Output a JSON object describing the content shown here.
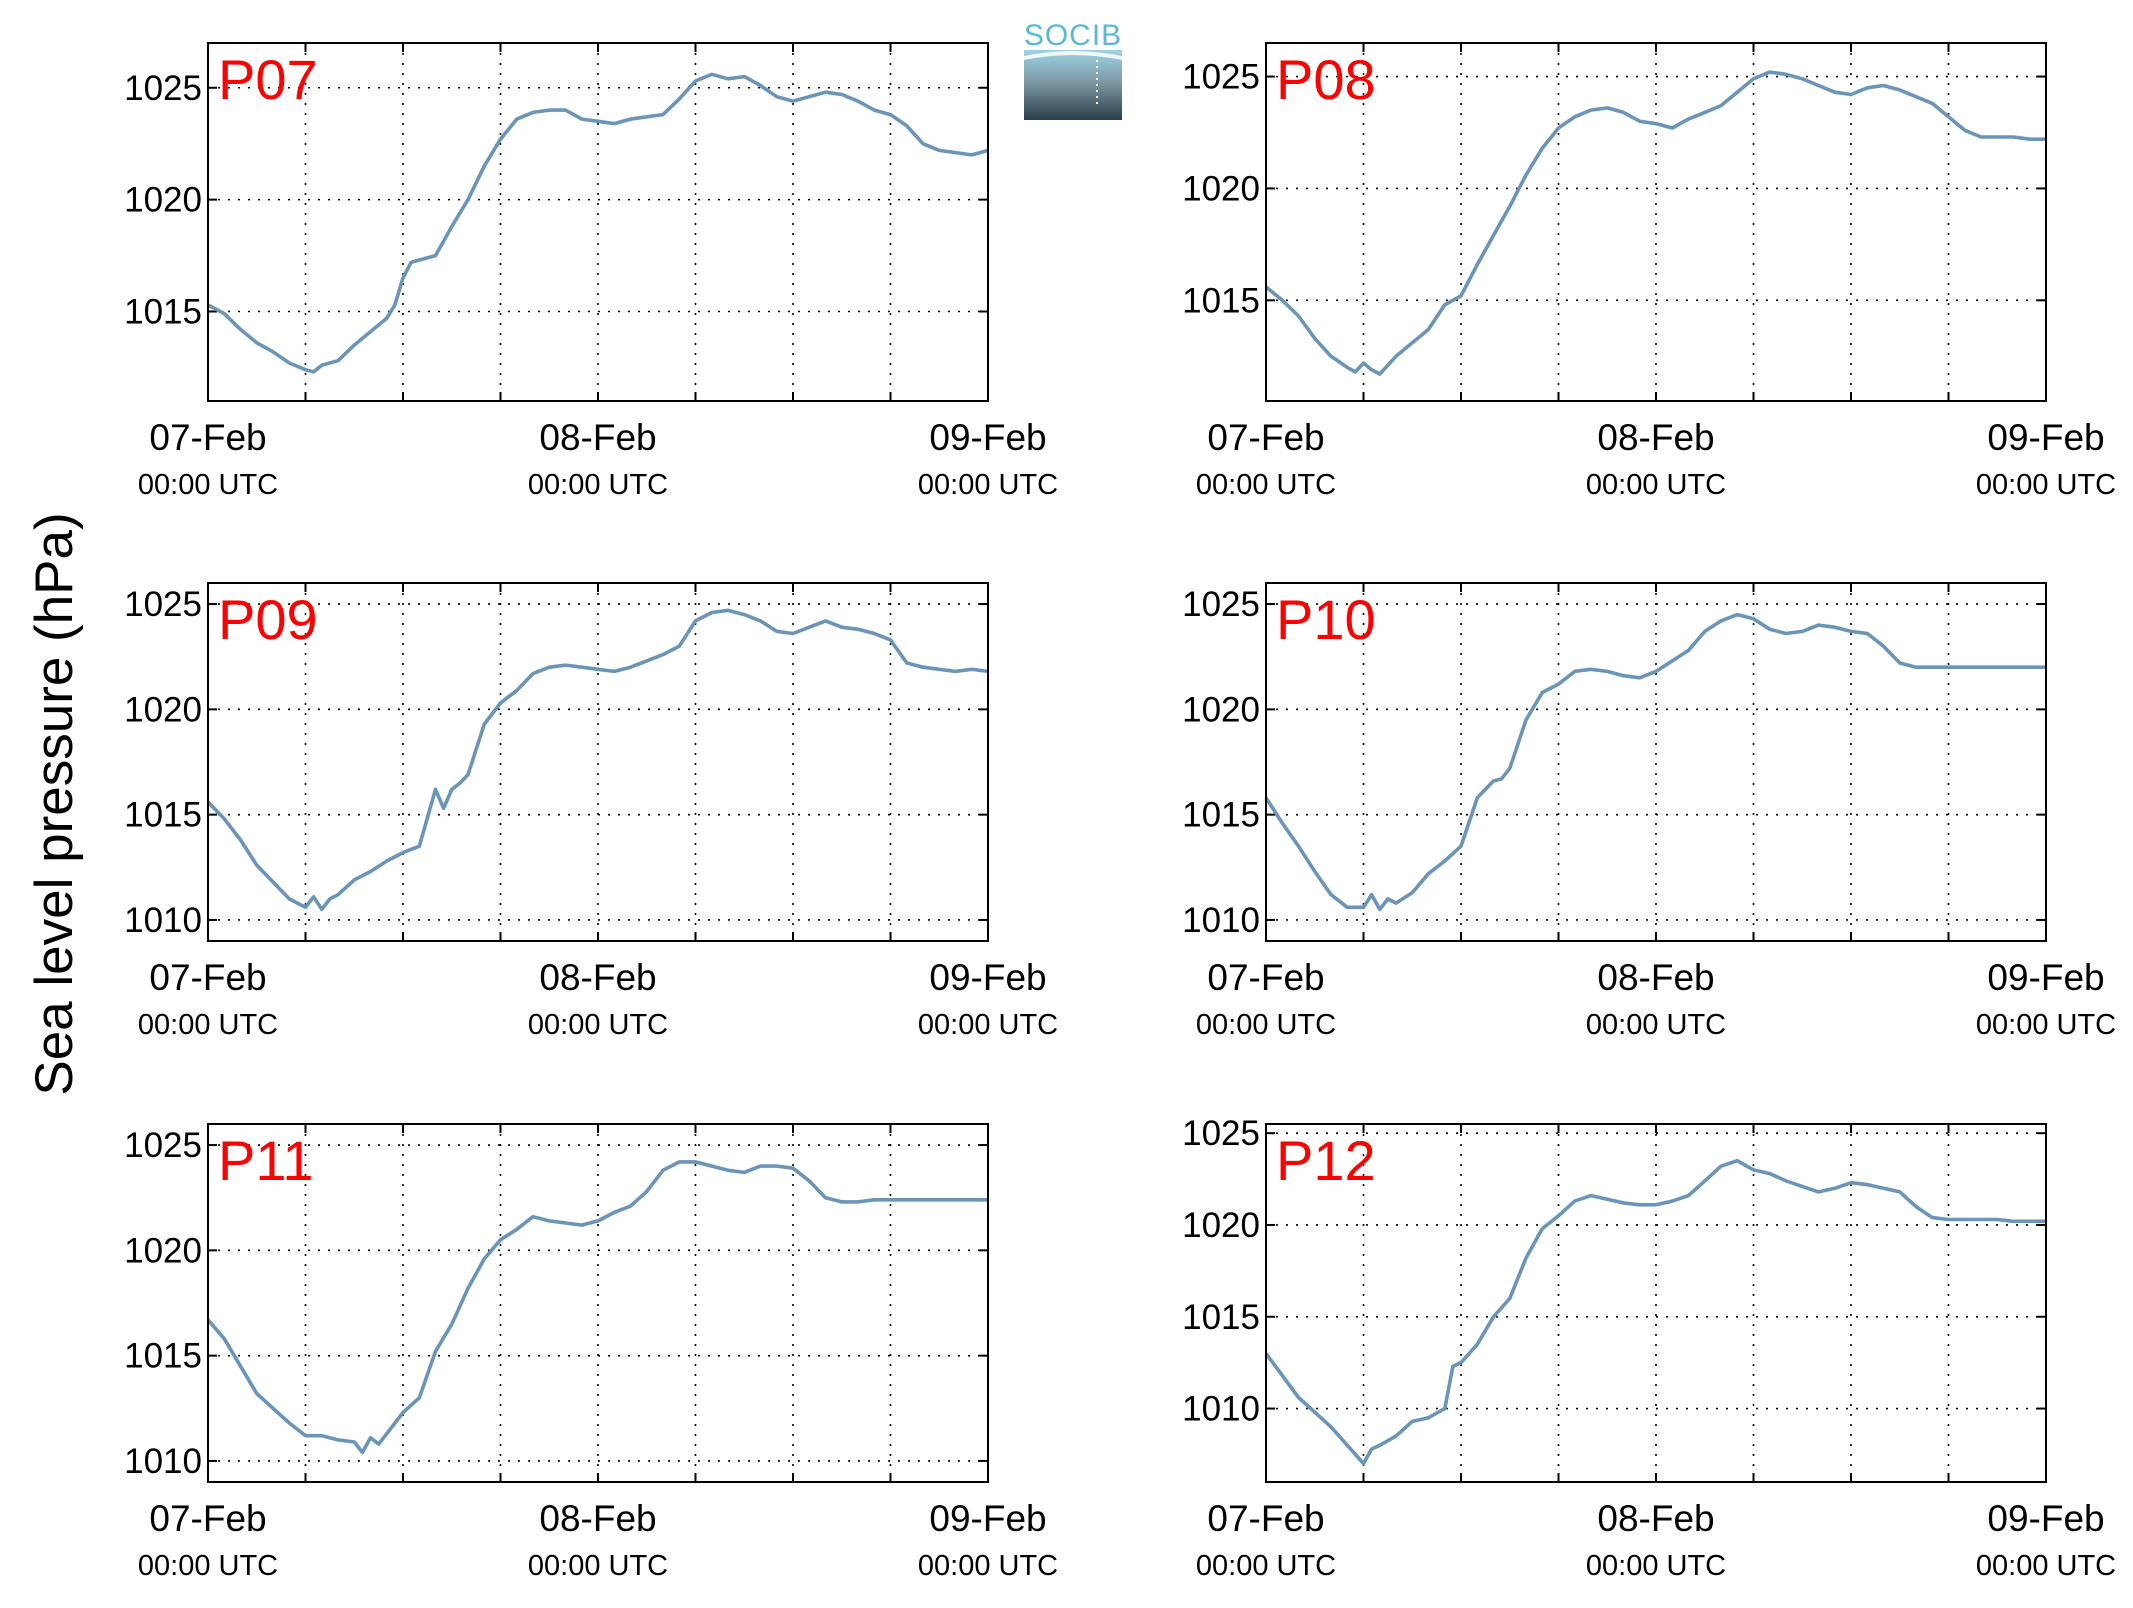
{
  "figure": {
    "ylabel": "Sea level pressure (hPa)",
    "logo_text": "SOCIB",
    "colors": {
      "line": "#6a94b8",
      "panel_label": "#ff0000",
      "logo_top": "#9cd3e3",
      "logo_bottom": "#2a3d4a"
    }
  },
  "chart_data": [
    {
      "type": "line",
      "panel": "P07",
      "ylim": [
        1011,
        1027
      ],
      "yticks": [
        1015,
        1020,
        1025
      ],
      "x_unit": "hours since 07-Feb 00:00 UTC",
      "xlim": [
        0,
        48
      ],
      "xtick_labels": [
        {
          "date": "07-Feb",
          "time": "00:00 UTC"
        },
        {
          "date": "08-Feb",
          "time": "00:00 UTC"
        },
        {
          "date": "09-Feb",
          "time": "00:00 UTC"
        }
      ],
      "grid": true,
      "series": [
        {
          "x": [
            0,
            1,
            2,
            3,
            4,
            5,
            6,
            6.5,
            7,
            8,
            9,
            10,
            11,
            11.5,
            12,
            12.5,
            13,
            14,
            15,
            16,
            17,
            18,
            19,
            20,
            21,
            22,
            23,
            24,
            25,
            26,
            27,
            28,
            29,
            30,
            31,
            32,
            33,
            34,
            35,
            36,
            37,
            38,
            39,
            40,
            41,
            42,
            43,
            44,
            45,
            46,
            47,
            48
          ],
          "y": [
            1015.3,
            1014.9,
            1014.2,
            1013.6,
            1013.2,
            1012.7,
            1012.4,
            1012.3,
            1012.6,
            1012.8,
            1013.5,
            1014.1,
            1014.7,
            1015.3,
            1016.5,
            1017.2,
            1017.3,
            1017.5,
            1018.8,
            1020.0,
            1021.5,
            1022.7,
            1023.6,
            1023.9,
            1024.0,
            1024.0,
            1023.6,
            1023.5,
            1023.4,
            1023.6,
            1023.7,
            1023.8,
            1024.5,
            1025.3,
            1025.6,
            1025.4,
            1025.5,
            1025.1,
            1024.6,
            1024.4,
            1024.6,
            1024.8,
            1024.7,
            1024.4,
            1024.0,
            1023.8,
            1023.3,
            1022.5,
            1022.2,
            1022.1,
            1022.0,
            1022.2
          ]
        }
      ]
    },
    {
      "type": "line",
      "panel": "P08",
      "ylim": [
        1010.5,
        1026.5
      ],
      "yticks": [
        1015,
        1020,
        1025
      ],
      "x_unit": "hours since 07-Feb 00:00 UTC",
      "xlim": [
        0,
        48
      ],
      "xtick_labels": [
        {
          "date": "07-Feb",
          "time": "00:00 UTC"
        },
        {
          "date": "08-Feb",
          "time": "00:00 UTC"
        },
        {
          "date": "09-Feb",
          "time": "00:00 UTC"
        }
      ],
      "grid": true,
      "series": [
        {
          "x": [
            0,
            1,
            2,
            3,
            4,
            5,
            5.5,
            6,
            6.5,
            7,
            8,
            9,
            10,
            11,
            12,
            13,
            14,
            15,
            16,
            17,
            18,
            19,
            20,
            21,
            22,
            23,
            24,
            25,
            26,
            27,
            28,
            29,
            30,
            31,
            32,
            33,
            34,
            35,
            36,
            37,
            38,
            39,
            40,
            41,
            42,
            43,
            44,
            45,
            46,
            47,
            48
          ],
          "y": [
            1015.6,
            1015.0,
            1014.3,
            1013.3,
            1012.5,
            1012.0,
            1011.8,
            1012.2,
            1011.9,
            1011.7,
            1012.5,
            1013.1,
            1013.7,
            1014.8,
            1015.2,
            1016.6,
            1017.9,
            1019.2,
            1020.6,
            1021.8,
            1022.7,
            1023.2,
            1023.5,
            1023.6,
            1023.4,
            1023.0,
            1022.9,
            1022.7,
            1023.1,
            1023.4,
            1023.7,
            1024.3,
            1024.9,
            1025.2,
            1025.1,
            1024.9,
            1024.6,
            1024.3,
            1024.2,
            1024.5,
            1024.6,
            1024.4,
            1024.1,
            1023.8,
            1023.2,
            1022.6,
            1022.3,
            1022.3,
            1022.3,
            1022.2,
            1022.2
          ]
        }
      ]
    },
    {
      "type": "line",
      "panel": "P09",
      "ylim": [
        1009,
        1026
      ],
      "yticks": [
        1010,
        1015,
        1020,
        1025
      ],
      "x_unit": "hours since 07-Feb 00:00 UTC",
      "xlim": [
        0,
        48
      ],
      "xtick_labels": [
        {
          "date": "07-Feb",
          "time": "00:00 UTC"
        },
        {
          "date": "08-Feb",
          "time": "00:00 UTC"
        },
        {
          "date": "09-Feb",
          "time": "00:00 UTC"
        }
      ],
      "grid": true,
      "series": [
        {
          "x": [
            0,
            1,
            2,
            3,
            4,
            5,
            6,
            6.5,
            7,
            7.5,
            8,
            9,
            10,
            11,
            12,
            13,
            14,
            14.5,
            15,
            15.5,
            16,
            17,
            18,
            19,
            20,
            21,
            22,
            23,
            24,
            25,
            26,
            27,
            28,
            29,
            30,
            31,
            32,
            33,
            34,
            35,
            36,
            37,
            38,
            39,
            40,
            41,
            42,
            43,
            44,
            45,
            46,
            47,
            48
          ],
          "y": [
            1015.6,
            1014.8,
            1013.8,
            1012.6,
            1011.8,
            1011.0,
            1010.6,
            1011.1,
            1010.5,
            1011.0,
            1011.2,
            1011.9,
            1012.3,
            1012.8,
            1013.2,
            1013.5,
            1016.2,
            1015.3,
            1016.2,
            1016.5,
            1016.9,
            1019.3,
            1020.3,
            1020.9,
            1021.7,
            1022.0,
            1022.1,
            1022.0,
            1021.9,
            1021.8,
            1022.0,
            1022.3,
            1022.6,
            1023.0,
            1024.2,
            1024.6,
            1024.7,
            1024.5,
            1024.2,
            1023.7,
            1023.6,
            1023.9,
            1024.2,
            1023.9,
            1023.8,
            1023.6,
            1023.3,
            1022.2,
            1022.0,
            1021.9,
            1021.8,
            1021.9,
            1021.8
          ]
        }
      ]
    },
    {
      "type": "line",
      "panel": "P10",
      "ylim": [
        1009,
        1026
      ],
      "yticks": [
        1010,
        1015,
        1020,
        1025
      ],
      "x_unit": "hours since 07-Feb 00:00 UTC",
      "xlim": [
        0,
        48
      ],
      "xtick_labels": [
        {
          "date": "07-Feb",
          "time": "00:00 UTC"
        },
        {
          "date": "08-Feb",
          "time": "00:00 UTC"
        },
        {
          "date": "09-Feb",
          "time": "00:00 UTC"
        }
      ],
      "grid": true,
      "series": [
        {
          "x": [
            0,
            1,
            2,
            3,
            4,
            5,
            6,
            6.5,
            7,
            7.5,
            8,
            9,
            10,
            11,
            12,
            13,
            14,
            14.5,
            15,
            16,
            17,
            18,
            19,
            20,
            21,
            22,
            23,
            24,
            25,
            26,
            27,
            28,
            29,
            30,
            31,
            32,
            33,
            34,
            35,
            36,
            37,
            38,
            39,
            40,
            41,
            42,
            43,
            44,
            45,
            46,
            47,
            48
          ],
          "y": [
            1015.8,
            1014.6,
            1013.5,
            1012.3,
            1011.2,
            1010.6,
            1010.6,
            1011.2,
            1010.5,
            1011.0,
            1010.8,
            1011.3,
            1012.2,
            1012.8,
            1013.5,
            1015.8,
            1016.6,
            1016.7,
            1017.2,
            1019.5,
            1020.8,
            1021.2,
            1021.8,
            1021.9,
            1021.8,
            1021.6,
            1021.5,
            1021.8,
            1022.3,
            1022.8,
            1023.7,
            1024.2,
            1024.5,
            1024.3,
            1023.8,
            1023.6,
            1023.7,
            1024.0,
            1023.9,
            1023.7,
            1023.6,
            1023.0,
            1022.2,
            1022.0,
            1022.0,
            1022.0,
            1022.0,
            1022.0,
            1022.0,
            1022.0,
            1022.0,
            1022.0
          ]
        }
      ]
    },
    {
      "type": "line",
      "panel": "P11",
      "ylim": [
        1009,
        1026
      ],
      "yticks": [
        1010,
        1015,
        1020,
        1025
      ],
      "x_unit": "hours since 07-Feb 00:00 UTC",
      "xlim": [
        0,
        48
      ],
      "xtick_labels": [
        {
          "date": "07-Feb",
          "time": "00:00 UTC"
        },
        {
          "date": "08-Feb",
          "time": "00:00 UTC"
        },
        {
          "date": "09-Feb",
          "time": "00:00 UTC"
        }
      ],
      "grid": true,
      "series": [
        {
          "x": [
            0,
            1,
            2,
            3,
            4,
            5,
            6,
            7,
            8,
            9,
            9.5,
            10,
            10.5,
            11,
            12,
            13,
            14,
            15,
            16,
            17,
            18,
            19,
            20,
            21,
            22,
            23,
            24,
            25,
            26,
            27,
            28,
            29,
            30,
            31,
            32,
            33,
            34,
            35,
            36,
            37,
            38,
            39,
            40,
            41,
            42,
            43,
            44,
            45,
            46,
            47,
            48
          ],
          "y": [
            1016.7,
            1015.8,
            1014.5,
            1013.2,
            1012.5,
            1011.8,
            1011.2,
            1011.2,
            1011.0,
            1010.9,
            1010.4,
            1011.1,
            1010.8,
            1011.3,
            1012.3,
            1013.0,
            1015.2,
            1016.5,
            1018.2,
            1019.6,
            1020.5,
            1021.0,
            1021.6,
            1021.4,
            1021.3,
            1021.2,
            1021.4,
            1021.8,
            1022.1,
            1022.8,
            1023.8,
            1024.2,
            1024.2,
            1024.0,
            1023.8,
            1023.7,
            1024.0,
            1024.0,
            1023.9,
            1023.3,
            1022.5,
            1022.3,
            1022.3,
            1022.4,
            1022.4,
            1022.4,
            1022.4,
            1022.4,
            1022.4,
            1022.4,
            1022.4
          ]
        }
      ]
    },
    {
      "type": "line",
      "panel": "P12",
      "ylim": [
        1006,
        1025.5
      ],
      "yticks": [
        1010,
        1015,
        1020,
        1025
      ],
      "x_unit": "hours since 07-Feb 00:00 UTC",
      "xlim": [
        0,
        48
      ],
      "xtick_labels": [
        {
          "date": "07-Feb",
          "time": "00:00 UTC"
        },
        {
          "date": "08-Feb",
          "time": "00:00 UTC"
        },
        {
          "date": "09-Feb",
          "time": "00:00 UTC"
        }
      ],
      "grid": true,
      "series": [
        {
          "x": [
            0,
            1,
            2,
            3,
            4,
            5,
            6,
            6.5,
            7,
            8,
            9,
            10,
            11,
            11.5,
            12,
            13,
            14,
            15,
            16,
            17,
            18,
            19,
            20,
            21,
            22,
            23,
            24,
            25,
            26,
            27,
            28,
            29,
            30,
            31,
            32,
            33,
            34,
            35,
            36,
            37,
            38,
            39,
            40,
            41,
            42,
            43,
            44,
            45,
            46,
            47,
            48
          ],
          "y": [
            1013.0,
            1011.8,
            1010.6,
            1009.8,
            1009.0,
            1008.0,
            1007.0,
            1007.8,
            1008.0,
            1008.5,
            1009.3,
            1009.5,
            1010.0,
            1012.3,
            1012.5,
            1013.5,
            1015.0,
            1016.0,
            1018.2,
            1019.8,
            1020.5,
            1021.3,
            1021.6,
            1021.4,
            1021.2,
            1021.1,
            1021.1,
            1021.3,
            1021.6,
            1022.4,
            1023.2,
            1023.5,
            1023.0,
            1022.8,
            1022.4,
            1022.1,
            1021.8,
            1022.0,
            1022.3,
            1022.2,
            1022.0,
            1021.8,
            1021.0,
            1020.4,
            1020.3,
            1020.3,
            1020.3,
            1020.3,
            1020.2,
            1020.2,
            1020.2
          ]
        }
      ]
    }
  ]
}
